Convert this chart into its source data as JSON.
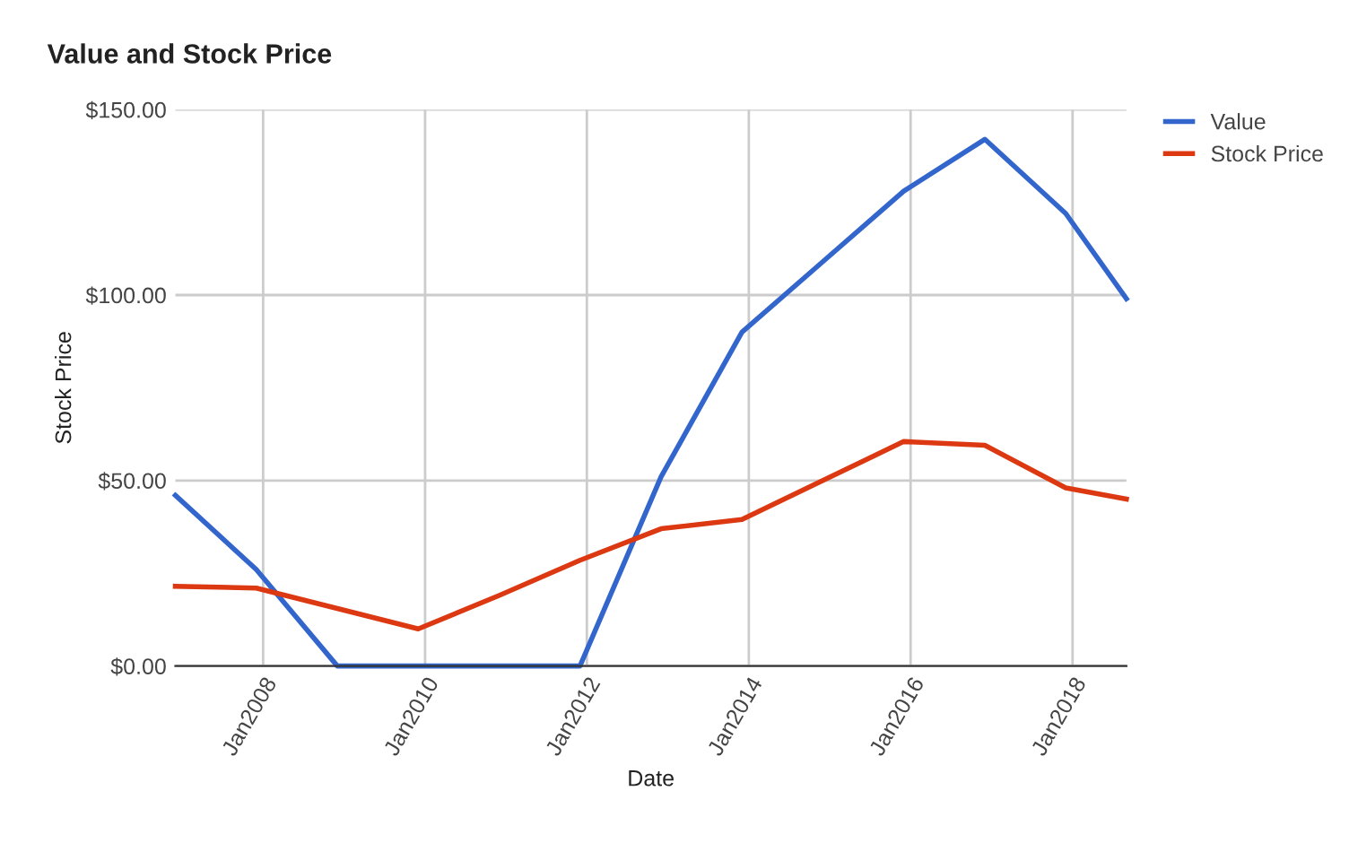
{
  "chart_data": {
    "type": "line",
    "title": "Value and Stock Price",
    "xlabel": "Date",
    "ylabel": "Stock Price",
    "x": [
      "2006-12",
      "2007-12",
      "2008-12",
      "2009-12",
      "2010-12",
      "2011-12",
      "2012-12",
      "2013-12",
      "2014-12",
      "2015-12",
      "2016-12",
      "2017-12",
      "2018-09"
    ],
    "series": [
      {
        "name": "Value",
        "color": "#3366cc",
        "values": [
          46,
          26,
          0,
          0,
          0,
          0,
          51,
          90,
          109,
          128,
          142,
          122,
          99
        ]
      },
      {
        "name": "Stock Price",
        "color": "#dc3912",
        "values": [
          21.5,
          21,
          15.5,
          10,
          19,
          28.5,
          37,
          39.5,
          50,
          60.5,
          59.5,
          48,
          45
        ]
      }
    ],
    "xlim": [
      "2006-12",
      "2018-09"
    ],
    "xticks": [
      {
        "value": "2008-01",
        "label": "Jan2008"
      },
      {
        "value": "2010-01",
        "label": "Jan2010"
      },
      {
        "value": "2012-01",
        "label": "Jan2012"
      },
      {
        "value": "2014-01",
        "label": "Jan2014"
      },
      {
        "value": "2016-01",
        "label": "Jan2016"
      },
      {
        "value": "2018-01",
        "label": "Jan2018"
      }
    ],
    "ylim": [
      0,
      150
    ],
    "yticks": [
      {
        "value": 0,
        "label": "$0.00"
      },
      {
        "value": 50,
        "label": "$50.00"
      },
      {
        "value": 100,
        "label": "$100.00"
      },
      {
        "value": 150,
        "label": "$150.00"
      }
    ],
    "grid": true,
    "legend": "top right",
    "marker": "none",
    "line_style": "solid"
  }
}
